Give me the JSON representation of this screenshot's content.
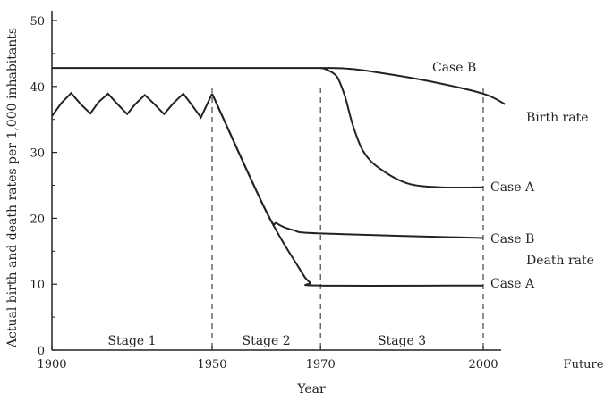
{
  "chart_data": {
    "type": "line",
    "xlabel": "Year",
    "ylabel": "Actual birth and death rates per 1,000 inhabitants",
    "xlim": [
      1900,
      2010
    ],
    "ylim": [
      0,
      50
    ],
    "x_ticks": [
      {
        "label": "1900",
        "value": 1900
      },
      {
        "label": "1950",
        "value": 1950
      },
      {
        "label": "1970",
        "value": 1970
      },
      {
        "label": "2000",
        "value": 2000
      },
      {
        "label": "Future",
        "value": 2013
      }
    ],
    "y_ticks": [
      0,
      10,
      20,
      30,
      40,
      50
    ],
    "stage_dividers": [
      1950,
      1970,
      2000
    ],
    "stages": [
      "Stage 1",
      "Stage 2",
      "Stage 3"
    ],
    "series": [
      {
        "name": "Birth rate (Case B)",
        "x": [
          1900,
          1950,
          1970,
          1975,
          1980,
          1990,
          2000,
          2004
        ],
        "y": [
          42.8,
          42.8,
          42.8,
          42.7,
          42.2,
          40.8,
          38.9,
          37.3
        ]
      },
      {
        "name": "Birth rate (Case A)",
        "x": [
          1970,
          1971,
          1973,
          1974.5,
          1976,
          1978,
          1981,
          1986,
          1992,
          2000
        ],
        "y": [
          42.8,
          42.6,
          41.5,
          38.5,
          34,
          30,
          27.5,
          25.3,
          24.7,
          24.7
        ]
      },
      {
        "name": "Death rate (Stage 1)",
        "x": [
          1900,
          1903,
          1906,
          1909,
          1912,
          1914.5,
          1917.5,
          1920.5,
          1923.5,
          1926,
          1929,
          1932,
          1935,
          1938,
          1941,
          1943.5,
          1946.5,
          1950
        ],
        "y": [
          35.5,
          37.5,
          39,
          37.3,
          35.9,
          37.6,
          38.9,
          37.3,
          35.8,
          37.3,
          38.7,
          37.3,
          35.8,
          37.5,
          38.9,
          37.3,
          35.3,
          38.9
        ]
      },
      {
        "name": "Death rate (Case B)",
        "x": [
          1950,
          1960,
          1962,
          1965,
          1970,
          2000
        ],
        "y": [
          38.9,
          21,
          19.2,
          18.2,
          17.7,
          17
        ]
      },
      {
        "name": "Death rate (Case A)",
        "x": [
          1950,
          1960,
          1966,
          1968,
          1970,
          2000
        ],
        "y": [
          38.9,
          21,
          12.5,
          10.3,
          9.8,
          9.8
        ]
      }
    ],
    "annotations": [
      {
        "key": "birth_case_b",
        "text": "Case B"
      },
      {
        "key": "birth_rate",
        "text": "Birth rate"
      },
      {
        "key": "birth_case_a",
        "text": "Case A"
      },
      {
        "key": "death_case_b",
        "text": "Case B"
      },
      {
        "key": "death_rate",
        "text": "Death rate"
      },
      {
        "key": "death_case_a",
        "text": "Case A"
      }
    ],
    "grid": false,
    "legend": "none",
    "line_color": "#222222",
    "divider_color": "#444444"
  }
}
